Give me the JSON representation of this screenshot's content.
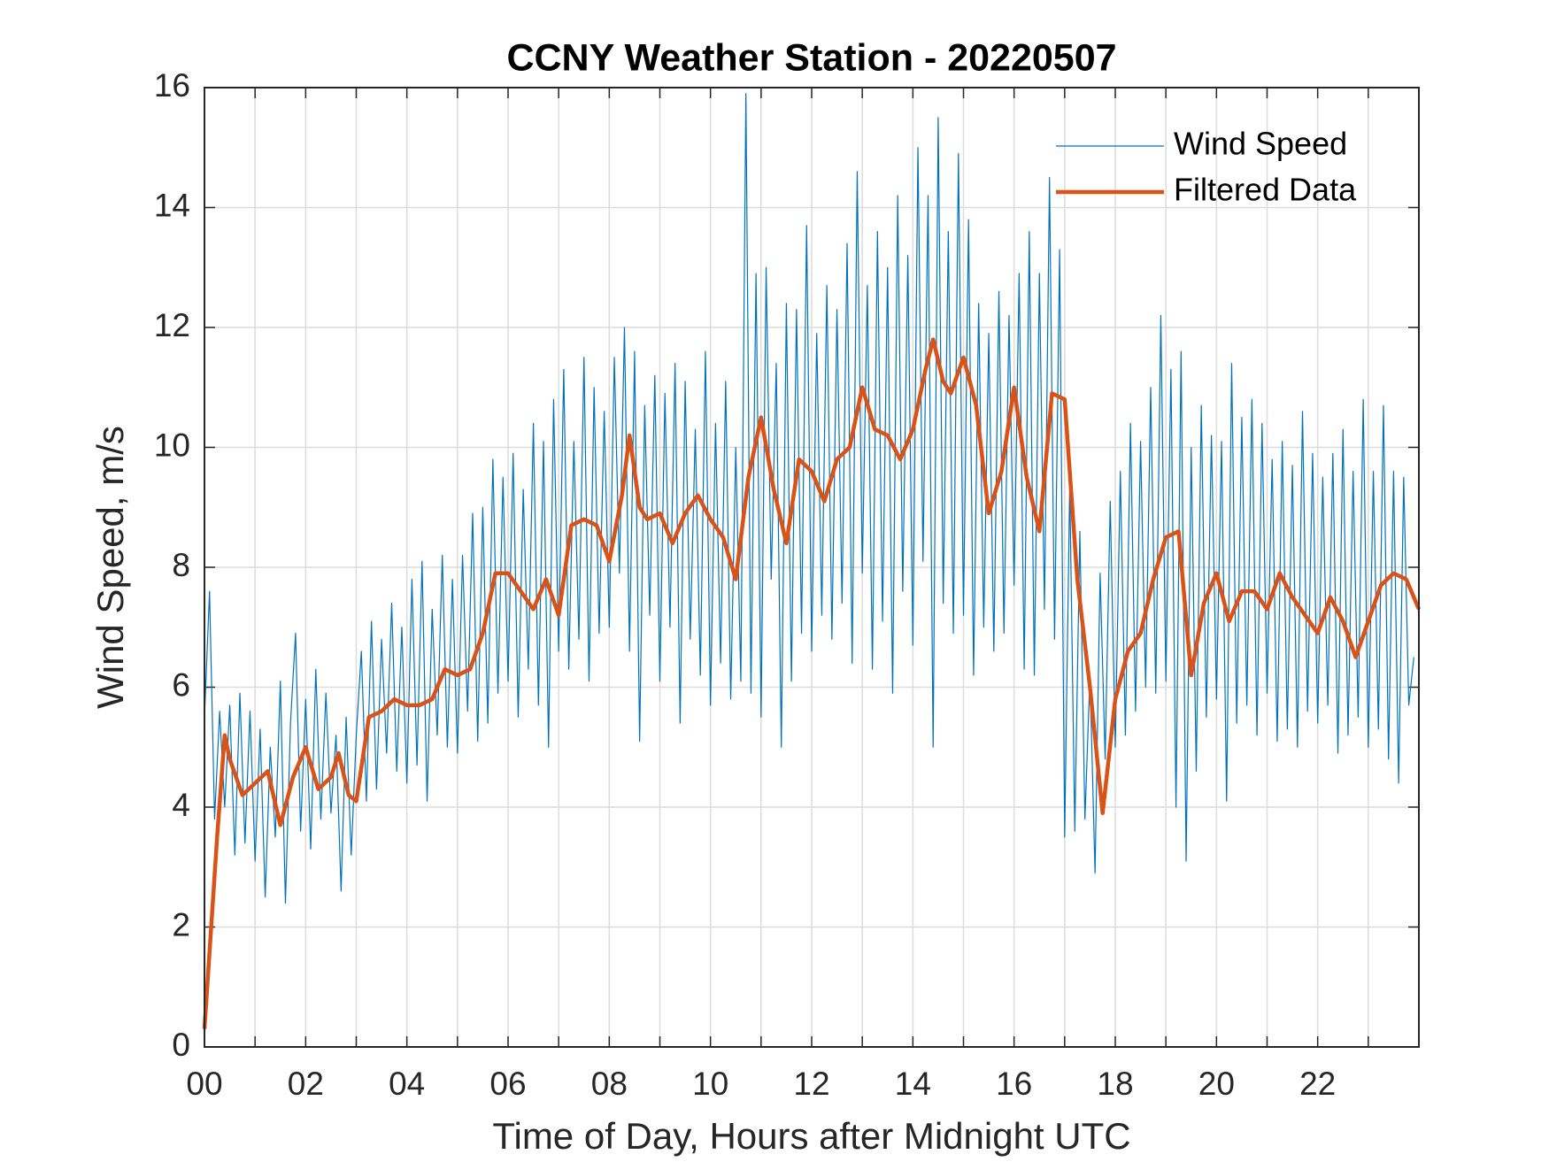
{
  "chart_data": {
    "type": "line",
    "title": "CCNY Weather Station - 20220507",
    "x_label": "Time of Day, Hours after Midnight UTC",
    "y_label": "Wind Speed, m/s",
    "xlim": [
      0,
      24
    ],
    "ylim": [
      0,
      16
    ],
    "yticks": [
      0,
      2,
      4,
      6,
      8,
      10,
      12,
      14,
      16
    ],
    "xticks": [
      {
        "value": 0,
        "label": "00"
      },
      {
        "value": 1,
        "label": null
      },
      {
        "value": 2,
        "label": "02"
      },
      {
        "value": 3,
        "label": null
      },
      {
        "value": 4,
        "label": "04"
      },
      {
        "value": 5,
        "label": null
      },
      {
        "value": 6,
        "label": "06"
      },
      {
        "value": 7,
        "label": null
      },
      {
        "value": 8,
        "label": "08"
      },
      {
        "value": 9,
        "label": null
      },
      {
        "value": 10,
        "label": "10"
      },
      {
        "value": 11,
        "label": null
      },
      {
        "value": 12,
        "label": "12"
      },
      {
        "value": 13,
        "label": null
      },
      {
        "value": 14,
        "label": "14"
      },
      {
        "value": 15,
        "label": null
      },
      {
        "value": 16,
        "label": "16"
      },
      {
        "value": 17,
        "label": null
      },
      {
        "value": 18,
        "label": "18"
      },
      {
        "value": 19,
        "label": null
      },
      {
        "value": 20,
        "label": "20"
      },
      {
        "value": 21,
        "label": null
      },
      {
        "value": 22,
        "label": "22"
      },
      {
        "value": 23,
        "label": null
      }
    ],
    "grid": true,
    "legend": "upper right",
    "series": [
      {
        "name": "Wind Speed",
        "color": "#0072bd",
        "width": 1.2,
        "x": [
          0,
          0.1,
          0.2,
          0.3,
          0.4,
          0.5,
          0.6,
          0.7,
          0.8,
          0.9,
          1,
          1.1,
          1.2,
          1.3,
          1.4,
          1.5,
          1.6,
          1.7,
          1.8,
          1.9,
          2,
          2.1,
          2.2,
          2.3,
          2.4,
          2.5,
          2.6,
          2.7,
          2.8,
          2.9,
          3,
          3.1,
          3.2,
          3.3,
          3.4,
          3.5,
          3.6,
          3.7,
          3.8,
          3.9,
          4,
          4.1,
          4.2,
          4.3,
          4.4,
          4.5,
          4.6,
          4.7,
          4.8,
          4.9,
          5,
          5.1,
          5.2,
          5.3,
          5.4,
          5.5,
          5.6,
          5.7,
          5.8,
          5.9,
          6,
          6.1,
          6.2,
          6.3,
          6.4,
          6.5,
          6.6,
          6.7,
          6.8,
          6.9,
          7,
          7.1,
          7.2,
          7.3,
          7.4,
          7.5,
          7.6,
          7.7,
          7.8,
          7.9,
          8,
          8.1,
          8.2,
          8.3,
          8.4,
          8.5,
          8.6,
          8.7,
          8.8,
          8.9,
          9,
          9.1,
          9.2,
          9.3,
          9.4,
          9.5,
          9.6,
          9.7,
          9.8,
          9.9,
          10,
          10.1,
          10.2,
          10.3,
          10.4,
          10.5,
          10.6,
          10.7,
          10.8,
          10.9,
          11,
          11.1,
          11.2,
          11.3,
          11.4,
          11.5,
          11.6,
          11.7,
          11.8,
          11.9,
          12,
          12.1,
          12.2,
          12.3,
          12.4,
          12.5,
          12.6,
          12.7,
          12.8,
          12.9,
          13,
          13.1,
          13.2,
          13.3,
          13.4,
          13.5,
          13.6,
          13.7,
          13.8,
          13.9,
          14,
          14.1,
          14.2,
          14.3,
          14.4,
          14.5,
          14.6,
          14.7,
          14.8,
          14.9,
          15,
          15.1,
          15.2,
          15.3,
          15.4,
          15.5,
          15.6,
          15.7,
          15.8,
          15.9,
          16,
          16.1,
          16.2,
          16.3,
          16.4,
          16.5,
          16.6,
          16.7,
          16.8,
          16.9,
          17,
          17.1,
          17.2,
          17.3,
          17.4,
          17.5,
          17.6,
          17.7,
          17.8,
          17.9,
          18,
          18.1,
          18.2,
          18.3,
          18.4,
          18.5,
          18.6,
          18.7,
          18.8,
          18.9,
          19,
          19.1,
          19.2,
          19.3,
          19.4,
          19.5,
          19.6,
          19.7,
          19.8,
          19.9,
          20,
          20.1,
          20.2,
          20.3,
          20.4,
          20.5,
          20.6,
          20.7,
          20.8,
          20.9,
          21,
          21.1,
          21.2,
          21.3,
          21.4,
          21.5,
          21.6,
          21.7,
          21.8,
          21.9,
          22,
          22.1,
          22.2,
          22.3,
          22.4,
          22.5,
          22.6,
          22.7,
          22.8,
          22.9,
          23,
          23.1,
          23.2,
          23.3,
          23.4,
          23.5,
          23.6,
          23.7,
          23.8,
          23.9
        ],
        "values": [
          5.5,
          7.6,
          3.8,
          5.6,
          4.0,
          5.7,
          3.2,
          5.9,
          3.4,
          5.6,
          3.1,
          5.3,
          2.5,
          5.0,
          3.5,
          6.1,
          2.4,
          5.4,
          6.9,
          3.6,
          5.8,
          3.3,
          6.3,
          3.8,
          5.9,
          3.9,
          5.2,
          2.6,
          5.5,
          3.2,
          5.2,
          6.6,
          4.1,
          7.1,
          4.3,
          6.8,
          4.9,
          7.4,
          4.6,
          7.0,
          4.4,
          7.8,
          4.7,
          8.1,
          4.1,
          7.3,
          5.2,
          8.2,
          5.0,
          7.8,
          4.9,
          8.2,
          5.6,
          8.9,
          5.1,
          9.0,
          5.4,
          9.8,
          5.9,
          9.5,
          6.1,
          9.9,
          5.5,
          9.3,
          6.3,
          10.4,
          5.7,
          10.1,
          5.0,
          10.8,
          6.6,
          11.3,
          6.3,
          10.1,
          6.8,
          11.5,
          6.1,
          11.0,
          6.9,
          10.6,
          7.0,
          11.5,
          7.9,
          12.0,
          6.6,
          11.6,
          5.1,
          10.7,
          7.2,
          11.2,
          6.1,
          10.9,
          7.0,
          11.4,
          5.4,
          11.1,
          6.8,
          10.3,
          6.2,
          11.6,
          5.7,
          10.4,
          6.4,
          11.1,
          5.8,
          10.0,
          6.1,
          15.9,
          5.9,
          12.9,
          5.5,
          13.0,
          7.8,
          11.4,
          5.0,
          12.4,
          6.1,
          12.3,
          6.9,
          13.7,
          6.6,
          11.9,
          7.2,
          12.7,
          6.8,
          12.3,
          7.4,
          13.4,
          6.4,
          14.6,
          7.9,
          12.7,
          6.3,
          13.6,
          7.1,
          13.0,
          5.9,
          14.2,
          7.6,
          13.2,
          6.7,
          15.0,
          8.1,
          14.2,
          5.0,
          15.5,
          7.4,
          13.6,
          6.9,
          14.9,
          7.2,
          13.8,
          6.2,
          12.4,
          7.0,
          11.9,
          6.6,
          12.6,
          6.9,
          12.2,
          7.7,
          12.9,
          6.3,
          13.6,
          6.2,
          12.9,
          7.3,
          14.5,
          6.8,
          13.3,
          3.5,
          9.4,
          3.6,
          8.6,
          3.8,
          6.2,
          2.9,
          7.9,
          4.8,
          9.1,
          5.0,
          9.6,
          5.2,
          10.4,
          5.6,
          10.1,
          6.0,
          11.0,
          5.9,
          12.2,
          6.1,
          11.3,
          4.0,
          11.6,
          3.1,
          10.0,
          4.6,
          10.7,
          5.5,
          10.2,
          5.8,
          10.1,
          4.1,
          11.4,
          5.4,
          10.5,
          5.7,
          10.8,
          5.2,
          10.4,
          5.9,
          9.8,
          5.1,
          10.1,
          5.3,
          9.7,
          5.0,
          10.6,
          5.6,
          9.9,
          5.4,
          9.5,
          5.7,
          9.9,
          4.9,
          10.3,
          5.2,
          9.6,
          5.5,
          10.8,
          5.0,
          9.6,
          5.3,
          10.7,
          4.8,
          9.6,
          4.4,
          9.5,
          5.7,
          6.5
        ]
      },
      {
        "name": "Filtered Data",
        "color": "#d95319",
        "width": 4.5,
        "x": [
          0,
          0.25,
          0.4,
          0.5,
          0.75,
          1,
          1.25,
          1.5,
          1.75,
          2,
          2.25,
          2.5,
          2.65,
          2.85,
          3,
          3.25,
          3.5,
          3.75,
          4,
          4.25,
          4.5,
          4.75,
          5,
          5.25,
          5.5,
          5.75,
          6,
          6.25,
          6.5,
          6.75,
          7,
          7.25,
          7.5,
          7.75,
          8,
          8.25,
          8.4,
          8.6,
          8.75,
          9,
          9.25,
          9.5,
          9.75,
          10,
          10.25,
          10.5,
          10.75,
          11,
          11.25,
          11.5,
          11.75,
          12,
          12.25,
          12.5,
          12.75,
          13,
          13.25,
          13.5,
          13.75,
          14,
          14.25,
          14.4,
          14.6,
          14.75,
          15,
          15.25,
          15.5,
          15.75,
          16,
          16.25,
          16.5,
          16.75,
          17,
          17.25,
          17.5,
          17.75,
          18,
          18.25,
          18.5,
          18.75,
          19,
          19.25,
          19.5,
          19.75,
          20,
          20.25,
          20.5,
          20.75,
          21,
          21.25,
          21.5,
          21.75,
          22,
          22.25,
          22.5,
          22.75,
          23,
          23.25,
          23.5,
          23.75,
          24
        ],
        "values": [
          0.3,
          3.5,
          5.2,
          4.8,
          4.2,
          4.4,
          4.6,
          3.7,
          4.5,
          5.0,
          4.3,
          4.5,
          4.9,
          4.2,
          4.1,
          5.5,
          5.6,
          5.8,
          5.7,
          5.7,
          5.8,
          6.3,
          6.2,
          6.3,
          6.9,
          7.9,
          7.9,
          7.6,
          7.3,
          7.8,
          7.2,
          8.7,
          8.8,
          8.7,
          8.1,
          9.2,
          10.2,
          9.0,
          8.8,
          8.9,
          8.4,
          8.9,
          9.2,
          8.8,
          8.5,
          7.8,
          9.5,
          10.5,
          9.3,
          8.4,
          9.8,
          9.6,
          9.1,
          9.8,
          10.0,
          11.0,
          10.3,
          10.2,
          9.8,
          10.3,
          11.3,
          11.8,
          11.1,
          10.9,
          11.5,
          10.7,
          8.9,
          9.6,
          11.0,
          9.5,
          8.6,
          10.9,
          10.8,
          7.8,
          6.0,
          3.9,
          5.8,
          6.6,
          6.9,
          7.8,
          8.5,
          8.6,
          6.2,
          7.4,
          7.9,
          7.1,
          7.6,
          7.6,
          7.3,
          7.9,
          7.5,
          7.2,
          6.9,
          7.5,
          7.1,
          6.5,
          7.1,
          7.7,
          7.9,
          7.8,
          7.3
        ]
      }
    ]
  }
}
